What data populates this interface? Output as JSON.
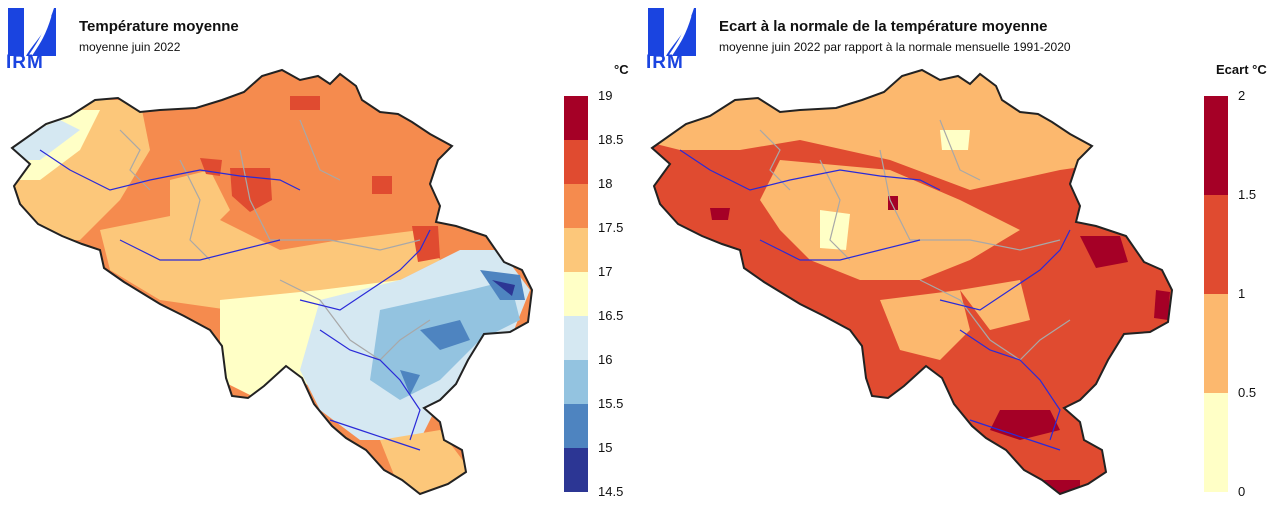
{
  "left": {
    "logo_text": "IRM",
    "title": "Température moyenne",
    "subtitle": "moyenne juin 2022",
    "unit": "°C",
    "legend": {
      "ticks": [
        "19",
        "18.5",
        "18",
        "17.5",
        "17",
        "16.5",
        "16",
        "15.5",
        "15",
        "14.5"
      ],
      "colors": [
        "#a50026",
        "#e04b30",
        "#f58b4e",
        "#fcc77a",
        "#ffffc6",
        "#d5e8f2",
        "#93c3e0",
        "#4e84c0",
        "#2c3694"
      ]
    }
  },
  "right": {
    "logo_text": "IRM",
    "title": "Ecart à la normale de la température moyenne",
    "subtitle": "moyenne juin 2022 par rapport à la normale mensuelle 1991-2020",
    "unit": "Ecart °C",
    "legend": {
      "ticks": [
        "2",
        "1.5",
        "1",
        "0.5",
        "0"
      ],
      "colors": [
        "#a50026",
        "#e04b30",
        "#fcb86e",
        "#ffffc6"
      ]
    }
  },
  "colors": {
    "logo_blue": "#1a44e0",
    "border": "#222222",
    "rivers": "#2a2ad8",
    "provinces": "#a8a8a8"
  }
}
